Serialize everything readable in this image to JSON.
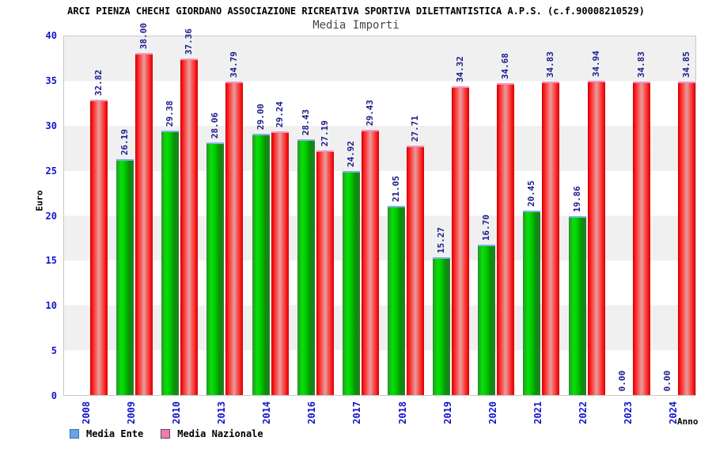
{
  "chart_data": {
    "type": "bar",
    "title": "ARCI PIENZA CHECHI GIORDANO ASSOCIAZIONE RICREATIVA SPORTIVA DILETTANTISTICA A.P.S. (c.f.90008210529)",
    "subtitle": "Media Importi",
    "xlabel": "Anno",
    "ylabel": "Euro",
    "ylim": [
      0,
      40
    ],
    "yticks": [
      0,
      5,
      10,
      15,
      20,
      25,
      30,
      35,
      40
    ],
    "grid": "alternating-horizontal-bands",
    "legend_position": "bottom-left",
    "categories": [
      "2008",
      "2009",
      "2010",
      "2013",
      "2014",
      "2016",
      "2017",
      "2018",
      "2019",
      "2020",
      "2021",
      "2022",
      "2023",
      "2024"
    ],
    "series": [
      {
        "name": "Media Ente",
        "legend_color": "#69a3e0",
        "bar_color": "#00cc00",
        "values": [
          null,
          26.19,
          29.38,
          28.06,
          29.0,
          28.43,
          24.92,
          21.05,
          15.27,
          16.7,
          20.45,
          19.86,
          0.0,
          0.0
        ]
      },
      {
        "name": "Media Nazionale",
        "legend_color": "#f07cb0",
        "bar_color": "#ff1e1e",
        "values": [
          32.82,
          38.0,
          37.36,
          34.79,
          29.24,
          27.19,
          29.43,
          27.71,
          34.32,
          34.68,
          34.83,
          34.94,
          34.83,
          34.85
        ]
      }
    ],
    "value_label_color": "#1a1a8c",
    "axis_tick_color": "#1414cc",
    "band_color": "#f0f0f0"
  }
}
